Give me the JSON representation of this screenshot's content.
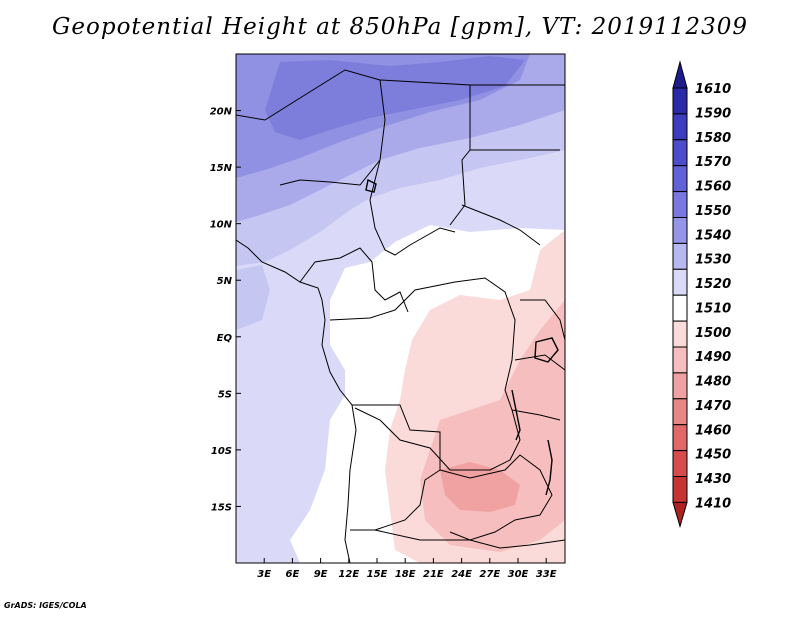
{
  "title": "Geopotential Height at 850hPa [gpm], VT: 2019112309",
  "credit": "GrADS: IGES/COLA",
  "map": {
    "lon_range": [
      0,
      35
    ],
    "lat_range": [
      -20,
      25
    ],
    "x_ticks": [
      "3E",
      "6E",
      "9E",
      "12E",
      "15E",
      "18E",
      "21E",
      "24E",
      "27E",
      "30E",
      "33E"
    ],
    "x_tick_values": [
      3,
      6,
      9,
      12,
      15,
      18,
      21,
      24,
      27,
      30,
      33
    ],
    "y_ticks": [
      "20N",
      "15N",
      "10N",
      "5N",
      "EQ",
      "5S",
      "10S",
      "15S"
    ],
    "y_tick_values": [
      20,
      15,
      10,
      5,
      0,
      -5,
      -10,
      -15
    ]
  },
  "colorbar": {
    "levels": [
      "1610",
      "1590",
      "1580",
      "1570",
      "1560",
      "1550",
      "1540",
      "1530",
      "1520",
      "1510",
      "1500",
      "1490",
      "1480",
      "1470",
      "1460",
      "1450",
      "1430",
      "1410"
    ],
    "colors": [
      "#1c1c8c",
      "#2a2aa8",
      "#3b3bbd",
      "#4d4dcc",
      "#6262d8",
      "#7878e0",
      "#9494e8",
      "#b8b8f0",
      "#dadaf8",
      "#ffffff",
      "#fbdada",
      "#f6bebe",
      "#f0a2a2",
      "#e88585",
      "#e06868",
      "#d64c4c",
      "#c73434",
      "#b02222"
    ]
  }
}
